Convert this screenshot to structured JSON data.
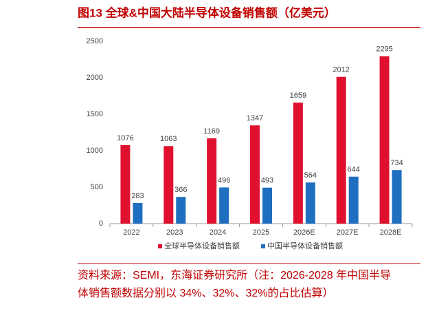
{
  "chart_data": {
    "type": "bar",
    "title": "图13  全球&中国大陆半导体设备销售额（亿美元）",
    "categories": [
      "2022",
      "2023",
      "2024",
      "2025",
      "2026E",
      "2027E",
      "2028E"
    ],
    "series": [
      {
        "name": "全球半导体设备销售额",
        "color": "#e0102f",
        "values": [
          1076,
          1063,
          1169,
          1347,
          1659,
          2012,
          2295
        ]
      },
      {
        "name": "中国半导体设备销售额",
        "color": "#1f6fc0",
        "values": [
          283,
          366,
          496,
          493,
          564,
          644,
          734
        ]
      }
    ],
    "ylim": [
      0,
      2500
    ],
    "yticks": [
      0,
      500,
      1000,
      1500,
      2000,
      2500
    ],
    "grid": false,
    "legend": "bottom",
    "source": [
      "资料来源：SEMI，东海证券研究所（注：2026-2028 年中国半导",
      "体销售额数据分别以 34%、32%、32%的占比估算）"
    ]
  }
}
